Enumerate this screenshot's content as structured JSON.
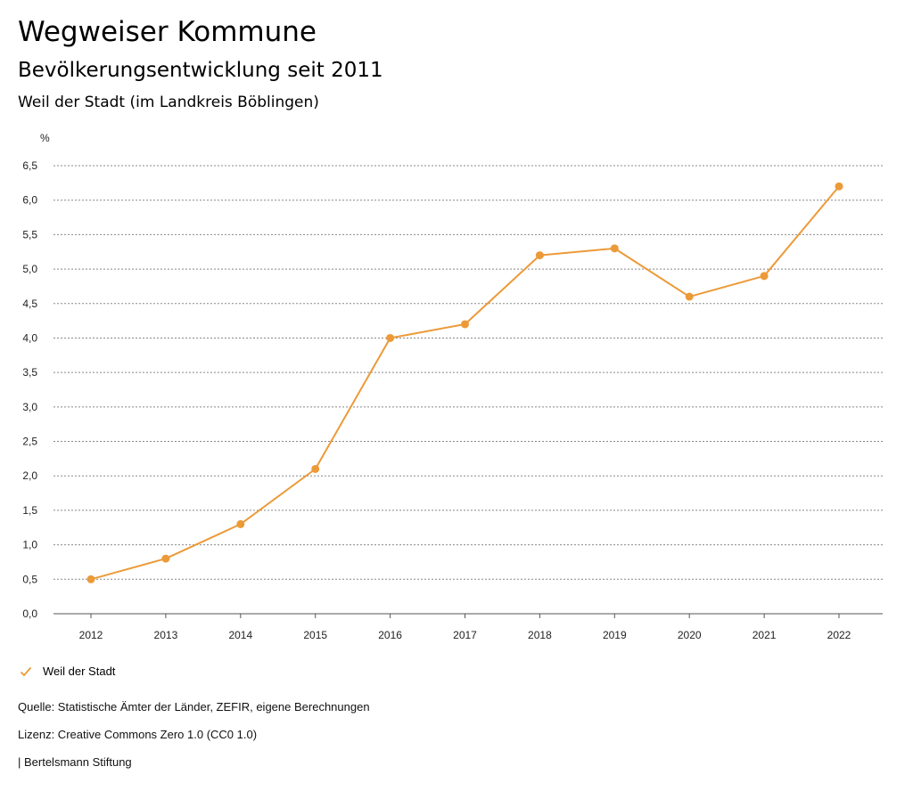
{
  "header": {
    "title": "Wegweiser Kommune",
    "subtitle": "Bevölkerungsentwicklung seit 2011",
    "region": "Weil der Stadt (im Landkreis Böblingen)"
  },
  "chart_data": {
    "type": "line",
    "title": "Bevölkerungsentwicklung seit 2011",
    "ylabel": "%",
    "xlabel": "",
    "ylim": [
      0,
      6.5
    ],
    "yticks": [
      "0,0",
      "0,5",
      "1,0",
      "1,5",
      "2,0",
      "2,5",
      "3,0",
      "3,5",
      "4,0",
      "4,5",
      "5,0",
      "5,5",
      "6,0",
      "6,5"
    ],
    "categories": [
      "2012",
      "2013",
      "2014",
      "2015",
      "2016",
      "2017",
      "2018",
      "2019",
      "2020",
      "2021",
      "2022"
    ],
    "series": [
      {
        "name": "Weil der Stadt",
        "color": "#ec9a38",
        "values": [
          0.5,
          0.8,
          1.3,
          2.1,
          4.0,
          4.2,
          5.2,
          5.3,
          4.6,
          4.9,
          6.2
        ]
      }
    ],
    "legend_position": "bottom-left",
    "grid": true
  },
  "legend": {
    "label": "Weil der Stadt",
    "icon": "check-icon"
  },
  "footer": {
    "source": "Quelle: Statistische Ämter der Länder, ZEFIR, eigene Berechnungen",
    "license": "Lizenz: Creative Commons Zero 1.0 (CC0 1.0)",
    "publisher": "| Bertelsmann Stiftung"
  }
}
